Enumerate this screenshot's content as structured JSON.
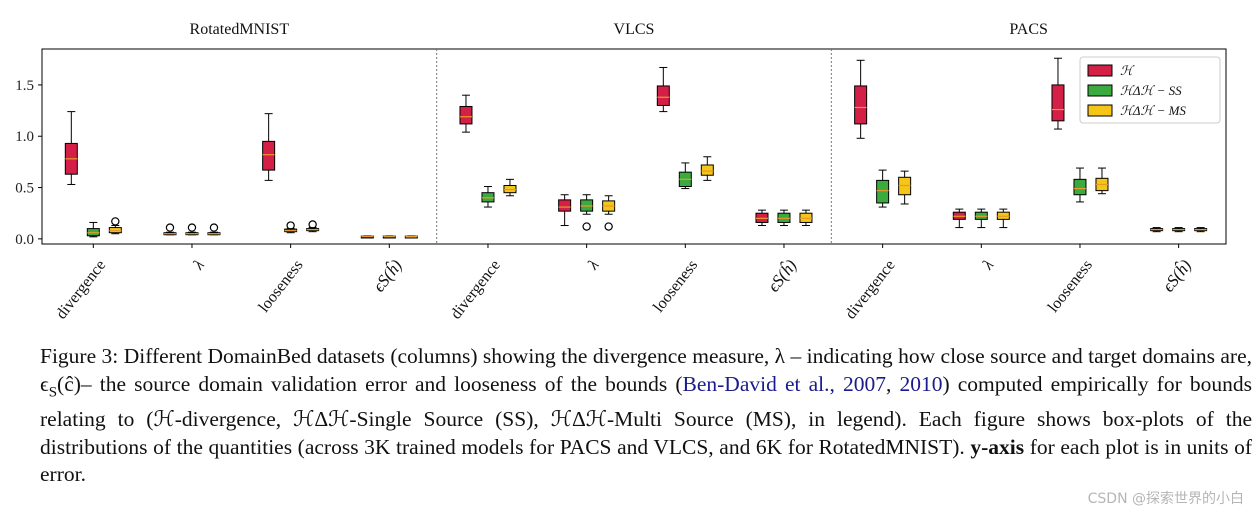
{
  "figure": {
    "panel_titles": [
      "RotatedMNIST",
      "VLCS",
      "PACS"
    ],
    "legend": [
      {
        "label": "ℋ",
        "color": "#d41f47"
      },
      {
        "label": "ℋΔℋ − SS",
        "color": "#3cab3f"
      },
      {
        "label": "ℋΔℋ − MS",
        "color": "#f5c518"
      }
    ]
  },
  "chart_data": {
    "type": "box",
    "ylim": [
      -0.05,
      1.85
    ],
    "yticks": [
      0.0,
      0.5,
      1.0,
      1.5
    ],
    "ytick_labels": [
      "0.0",
      "0.5",
      "1.0",
      "1.5"
    ],
    "categories": [
      "divergence",
      "λ",
      "looseness",
      "ϵS(ĥ)"
    ],
    "series_names": [
      "ℋ",
      "ℋΔℋ − SS",
      "ℋΔℋ − MS"
    ],
    "series_colors": [
      "#d41f47",
      "#3cab3f",
      "#f5c518"
    ],
    "panels": [
      {
        "title": "RotatedMNIST",
        "groups": [
          {
            "category": "divergence",
            "boxes": [
              {
                "series": 0,
                "min": 0.53,
                "q1": 0.63,
                "median": 0.78,
                "q3": 0.93,
                "max": 1.24
              },
              {
                "series": 1,
                "min": 0.02,
                "q1": 0.03,
                "median": 0.06,
                "q3": 0.1,
                "max": 0.16
              },
              {
                "series": 2,
                "min": 0.05,
                "q1": 0.06,
                "median": 0.08,
                "q3": 0.11,
                "max": 0.13,
                "outliers": [
                  0.17
                ]
              }
            ]
          },
          {
            "category": "λ",
            "boxes": [
              {
                "series": 0,
                "min": 0.04,
                "q1": 0.045,
                "median": 0.05,
                "q3": 0.06,
                "max": 0.065,
                "outliers": [
                  0.11
                ]
              },
              {
                "series": 1,
                "min": 0.04,
                "q1": 0.045,
                "median": 0.05,
                "q3": 0.06,
                "max": 0.065,
                "outliers": [
                  0.11
                ]
              },
              {
                "series": 2,
                "min": 0.04,
                "q1": 0.045,
                "median": 0.05,
                "q3": 0.06,
                "max": 0.065,
                "outliers": [
                  0.11
                ]
              }
            ]
          },
          {
            "category": "looseness",
            "boxes": [
              {
                "series": 0,
                "min": 0.57,
                "q1": 0.67,
                "median": 0.82,
                "q3": 0.95,
                "max": 1.22
              },
              {
                "series": 1,
                "min": 0.06,
                "q1": 0.07,
                "median": 0.08,
                "q3": 0.095,
                "max": 0.1,
                "outliers": [
                  0.13
                ]
              },
              {
                "series": 2,
                "min": 0.07,
                "q1": 0.08,
                "median": 0.09,
                "q3": 0.1,
                "max": 0.11,
                "outliers": [
                  0.14
                ]
              }
            ]
          },
          {
            "category": "ϵS(ĥ)",
            "boxes": [
              {
                "series": 0,
                "min": 0.02,
                "q1": 0.022,
                "median": 0.025,
                "q3": 0.028,
                "max": 0.03
              },
              {
                "series": 1,
                "min": 0.02,
                "q1": 0.022,
                "median": 0.025,
                "q3": 0.028,
                "max": 0.03
              },
              {
                "series": 2,
                "min": 0.02,
                "q1": 0.022,
                "median": 0.025,
                "q3": 0.028,
                "max": 0.03
              }
            ]
          }
        ]
      },
      {
        "title": "VLCS",
        "groups": [
          {
            "category": "divergence",
            "boxes": [
              {
                "series": 0,
                "min": 1.04,
                "q1": 1.12,
                "median": 1.19,
                "q3": 1.29,
                "max": 1.4
              },
              {
                "series": 1,
                "min": 0.31,
                "q1": 0.36,
                "median": 0.4,
                "q3": 0.45,
                "max": 0.51
              },
              {
                "series": 2,
                "min": 0.42,
                "q1": 0.45,
                "median": 0.48,
                "q3": 0.52,
                "max": 0.58
              }
            ]
          },
          {
            "category": "λ",
            "boxes": [
              {
                "series": 0,
                "min": 0.13,
                "q1": 0.27,
                "median": 0.31,
                "q3": 0.38,
                "max": 0.43
              },
              {
                "series": 1,
                "min": 0.24,
                "q1": 0.27,
                "median": 0.32,
                "q3": 0.38,
                "max": 0.43,
                "outliers": [
                  0.12
                ]
              },
              {
                "series": 2,
                "min": 0.24,
                "q1": 0.27,
                "median": 0.32,
                "q3": 0.37,
                "max": 0.42,
                "outliers": [
                  0.12
                ]
              }
            ]
          },
          {
            "category": "looseness",
            "boxes": [
              {
                "series": 0,
                "min": 1.24,
                "q1": 1.3,
                "median": 1.38,
                "q3": 1.49,
                "max": 1.67
              },
              {
                "series": 1,
                "min": 0.49,
                "q1": 0.51,
                "median": 0.58,
                "q3": 0.65,
                "max": 0.74
              },
              {
                "series": 2,
                "min": 0.57,
                "q1": 0.62,
                "median": 0.66,
                "q3": 0.72,
                "max": 0.8
              }
            ]
          },
          {
            "category": "ϵS(ĥ)",
            "boxes": [
              {
                "series": 0,
                "min": 0.13,
                "q1": 0.16,
                "median": 0.2,
                "q3": 0.25,
                "max": 0.28
              },
              {
                "series": 1,
                "min": 0.13,
                "q1": 0.16,
                "median": 0.2,
                "q3": 0.25,
                "max": 0.28
              },
              {
                "series": 2,
                "min": 0.13,
                "q1": 0.16,
                "median": 0.2,
                "q3": 0.25,
                "max": 0.28
              }
            ]
          }
        ]
      },
      {
        "title": "PACS",
        "groups": [
          {
            "category": "divergence",
            "boxes": [
              {
                "series": 0,
                "min": 0.98,
                "q1": 1.12,
                "median": 1.28,
                "q3": 1.49,
                "max": 1.74
              },
              {
                "series": 1,
                "min": 0.31,
                "q1": 0.35,
                "median": 0.47,
                "q3": 0.57,
                "max": 0.67
              },
              {
                "series": 2,
                "min": 0.34,
                "q1": 0.43,
                "median": 0.52,
                "q3": 0.6,
                "max": 0.66
              }
            ]
          },
          {
            "category": "λ",
            "boxes": [
              {
                "series": 0,
                "min": 0.11,
                "q1": 0.19,
                "median": 0.22,
                "q3": 0.26,
                "max": 0.29
              },
              {
                "series": 1,
                "min": 0.11,
                "q1": 0.19,
                "median": 0.22,
                "q3": 0.26,
                "max": 0.29
              },
              {
                "series": 2,
                "min": 0.11,
                "q1": 0.19,
                "median": 0.22,
                "q3": 0.26,
                "max": 0.29
              }
            ]
          },
          {
            "category": "looseness",
            "boxes": [
              {
                "series": 0,
                "min": 1.07,
                "q1": 1.15,
                "median": 1.26,
                "q3": 1.5,
                "max": 1.76
              },
              {
                "series": 1,
                "min": 0.36,
                "q1": 0.43,
                "median": 0.49,
                "q3": 0.58,
                "max": 0.69
              },
              {
                "series": 2,
                "min": 0.44,
                "q1": 0.47,
                "median": 0.53,
                "q3": 0.59,
                "max": 0.69
              }
            ]
          },
          {
            "category": "ϵS(ĥ)",
            "boxes": [
              {
                "series": 0,
                "min": 0.07,
                "q1": 0.08,
                "median": 0.09,
                "q3": 0.1,
                "max": 0.11
              },
              {
                "series": 1,
                "min": 0.07,
                "q1": 0.08,
                "median": 0.09,
                "q3": 0.1,
                "max": 0.11
              },
              {
                "series": 2,
                "min": 0.07,
                "q1": 0.08,
                "median": 0.09,
                "q3": 0.1,
                "max": 0.11
              }
            ]
          }
        ]
      }
    ]
  },
  "caption": {
    "prefix": "Figure 3: Different DomainBed datasets (columns) showing the divergence measure, λ – indicating how close source and target domains are, ϵ",
    "eps_sub": "S",
    "eps_arg": "(ĉ)",
    "mid1": "– the source domain validation error and looseness of the bounds (",
    "cite1": "Ben-David et al., 2007",
    "comma": ", ",
    "cite2": "2010",
    "rest1": ") computed empirically for bounds relating to (ℋ-divergence, ℋΔℋ-Single Source (SS), ℋΔℋ-Multi Source (MS), in legend). Each figure shows box-plots of the distributions of the quantities (across 3K trained models for PACS and VLCS, and 6K for RotatedMNIST). ",
    "bold": "y-axis",
    "rest2": " for each plot is in units of error."
  },
  "watermark": "CSDN @探索世界的小白"
}
